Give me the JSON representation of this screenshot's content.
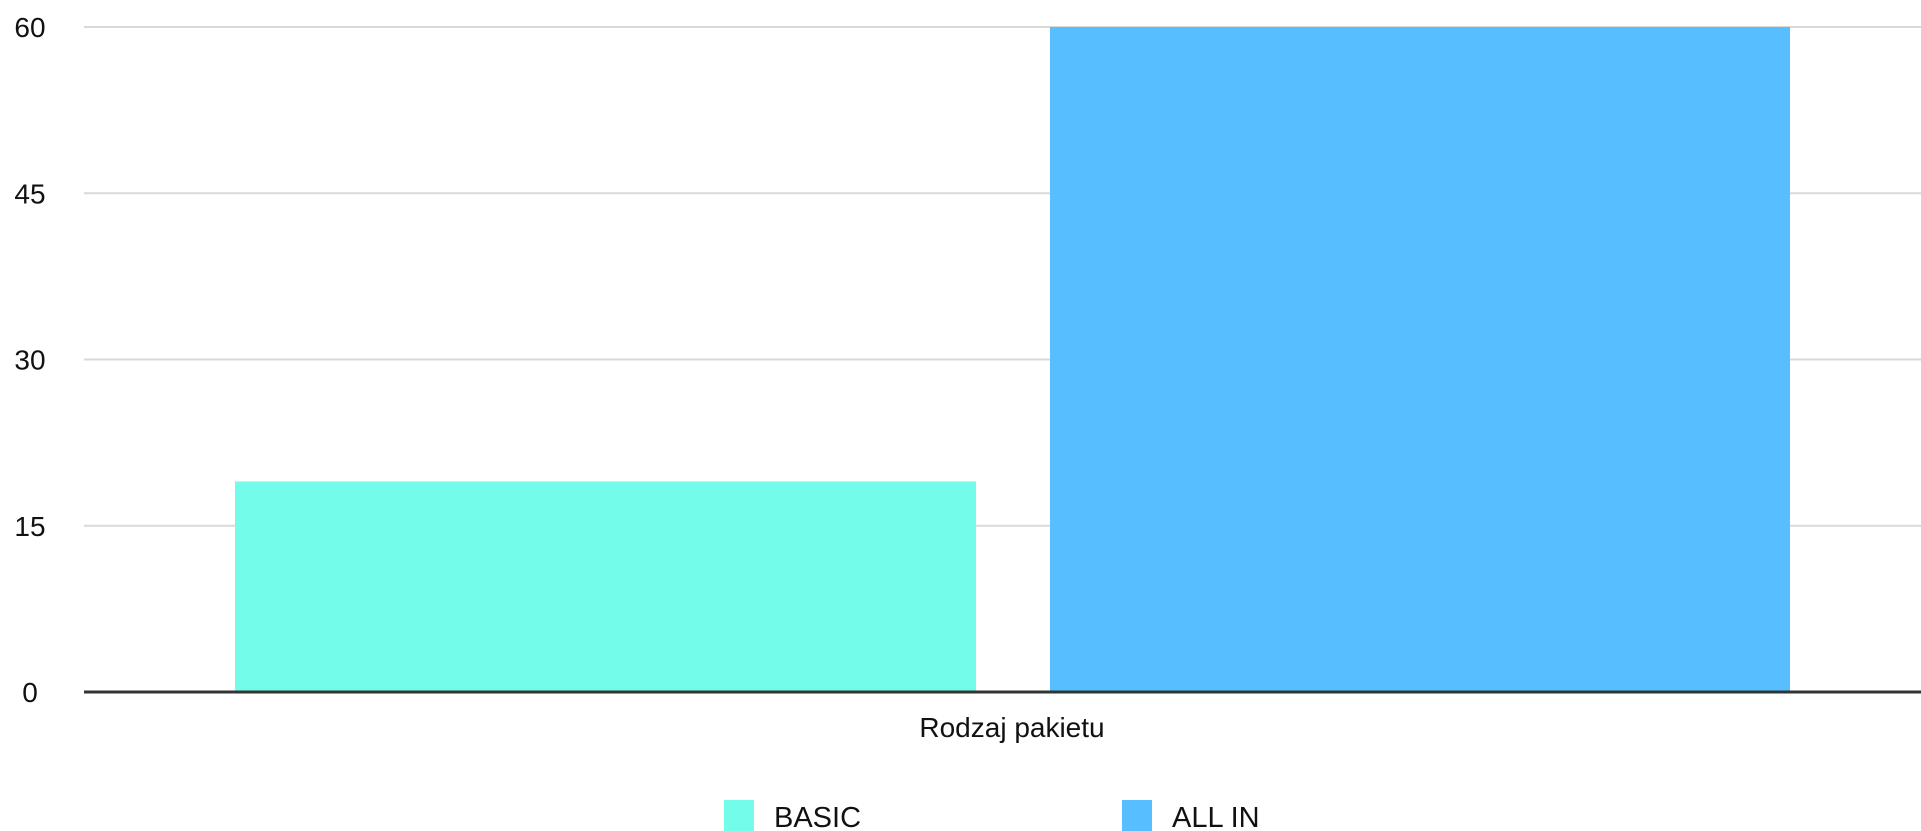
{
  "chart_data": {
    "type": "bar",
    "categories": [
      "Rodzaj pakietu"
    ],
    "series": [
      {
        "name": "BASIC",
        "values": [
          19
        ],
        "color": "#74FCEB"
      },
      {
        "name": "ALL IN",
        "values": [
          60
        ],
        "color": "#57BFFF"
      }
    ],
    "ylim": [
      0,
      60
    ],
    "yticks": [
      "0",
      "15",
      "30",
      "45",
      "60"
    ],
    "grid": true,
    "legend": "bottom-center"
  }
}
